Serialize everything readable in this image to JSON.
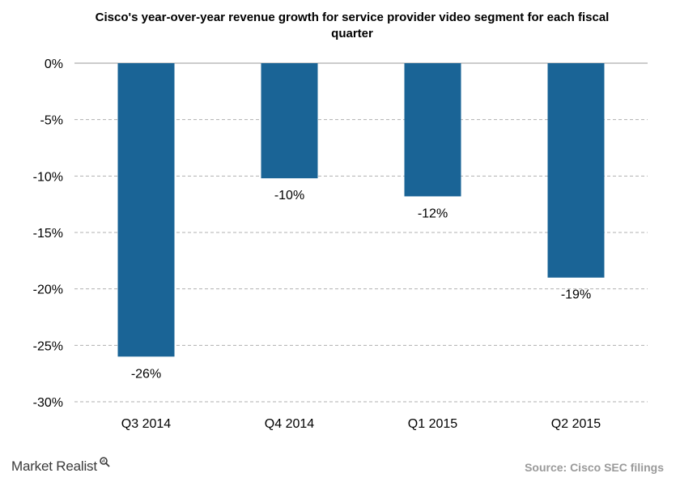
{
  "chart_data": {
    "type": "bar",
    "title": "Cisco's year-over-year revenue growth for service provider video segment for each fiscal quarter",
    "categories": [
      "Q3 2014",
      "Q4 2014",
      "Q1 2015",
      "Q2 2015"
    ],
    "values": [
      -26,
      -10.2,
      -11.8,
      -19
    ],
    "data_labels": [
      "-26%",
      "-10%",
      "-12%",
      "-19%"
    ],
    "ylim": [
      -30,
      0
    ],
    "yticks": [
      0,
      -5,
      -10,
      -15,
      -20,
      -25,
      -30
    ],
    "ytick_labels": [
      "0%",
      "-5%",
      "-10%",
      "-15%",
      "-20%",
      "-25%",
      "-30%"
    ],
    "xlabel": "",
    "ylabel": "",
    "grid": true,
    "bar_color": "#1a6496"
  },
  "footer": {
    "brand": "Market Realist",
    "source": "Source: Cisco SEC filings"
  }
}
